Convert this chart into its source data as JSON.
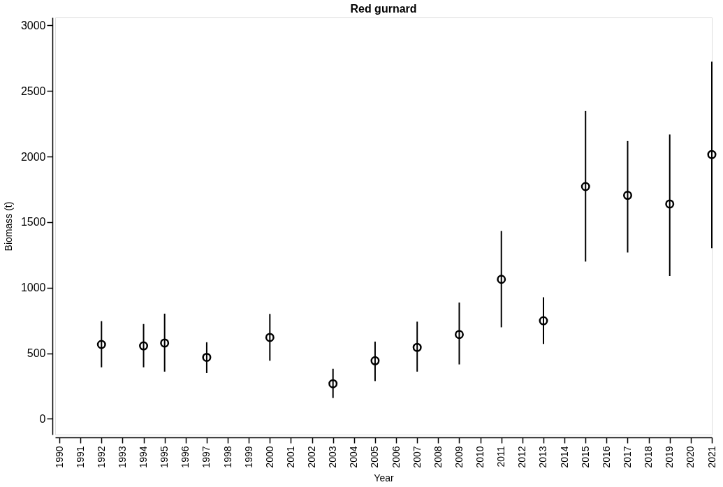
{
  "chart_data": {
    "type": "scatter",
    "title": "Red gurnard",
    "xlabel": "Year",
    "ylabel": "Biomass (t)",
    "x": [
      1992,
      1994,
      1995,
      1997,
      2000,
      2003,
      2005,
      2007,
      2009,
      2011,
      2013,
      2015,
      2017,
      2019,
      2021
    ],
    "series": [
      {
        "color": "#000000",
        "values": [
          567,
          556,
          578,
          469,
          621,
          268,
          443,
          545,
          643,
          1064,
          748,
          1771,
          1704,
          1638,
          2015
        ],
        "errors": [
          [
            393,
            745
          ],
          [
            393,
            723
          ],
          [
            360,
            802
          ],
          [
            349,
            584
          ],
          [
            443,
            800
          ],
          [
            159,
            382
          ],
          [
            288,
            589
          ],
          [
            360,
            741
          ],
          [
            415,
            887
          ],
          [
            698,
            1432
          ],
          [
            571,
            927
          ],
          [
            1199,
            2347
          ],
          [
            1268,
            2118
          ],
          [
            1089,
            2168
          ],
          [
            1301,
            2723
          ]
        ]
      }
    ],
    "xlim": [
      1989.8,
      2021
    ],
    "xticks": [
      1990,
      1991,
      1992,
      1993,
      1994,
      1995,
      1996,
      1997,
      1998,
      1999,
      2000,
      2001,
      2002,
      2003,
      2004,
      2005,
      2006,
      2007,
      2008,
      2009,
      2010,
      2011,
      2012,
      2013,
      2014,
      2015,
      2016,
      2017,
      2018,
      2019,
      2020,
      2021
    ],
    "ylim": [
      -120,
      3060
    ],
    "yticks": [
      0,
      500,
      1000,
      1500,
      2000,
      2500,
      3000
    ],
    "marker": "circle",
    "grid": false
  }
}
